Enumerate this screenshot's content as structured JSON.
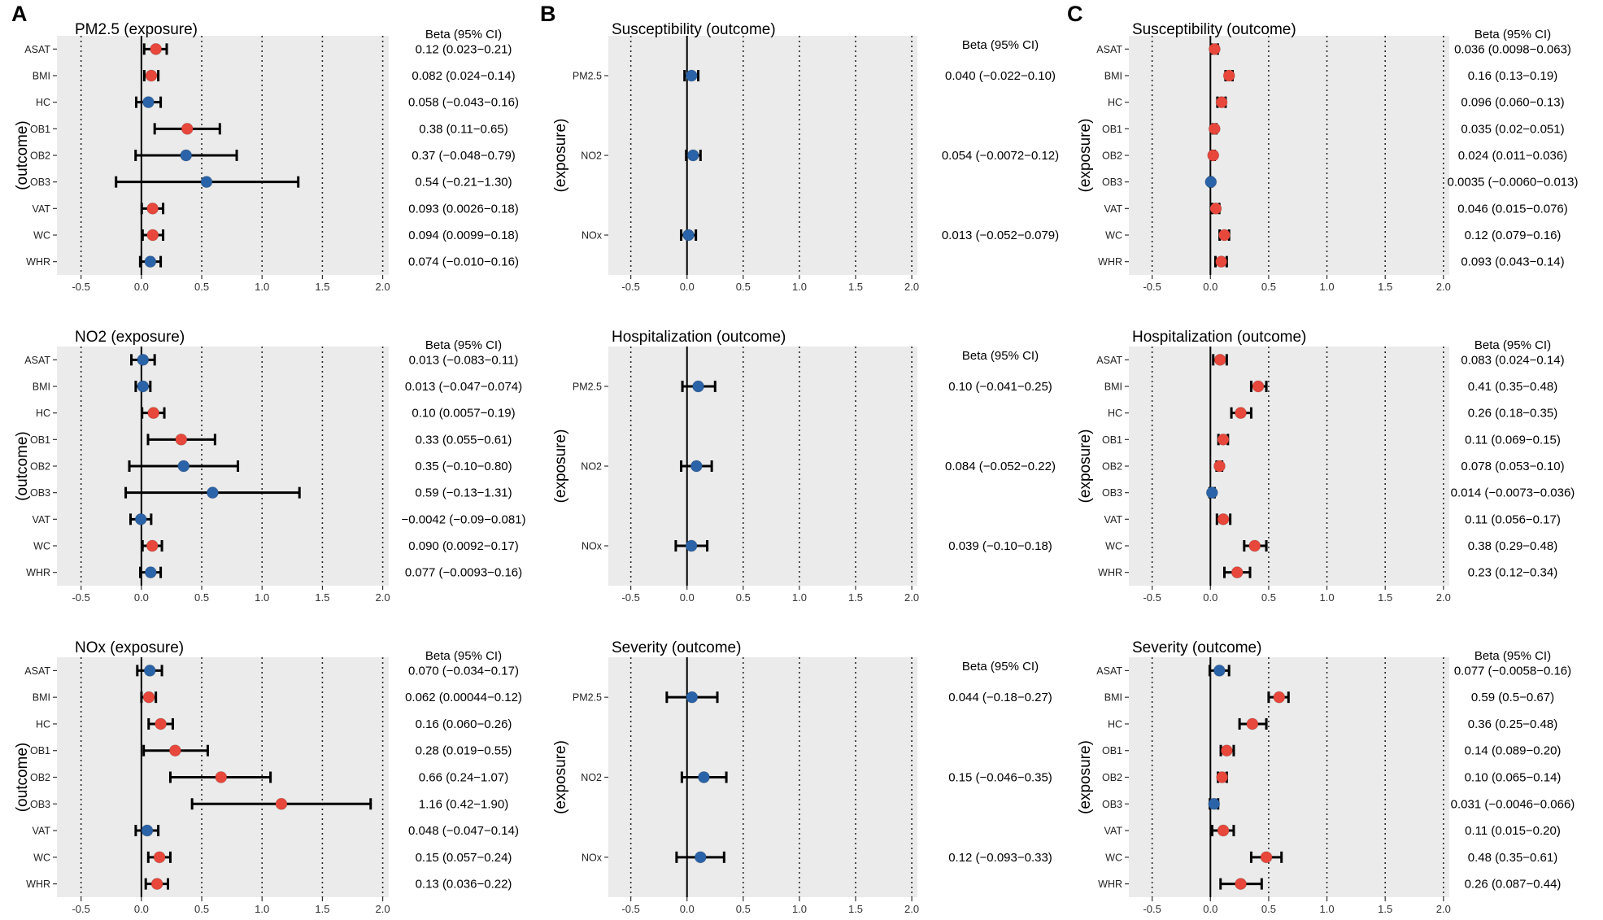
{
  "figure": {
    "panel_letters": [
      "A",
      "B",
      "C"
    ],
    "ci_header": "Beta (95% CI)",
    "x_ticks": [
      "-0.5",
      "0.0",
      "0.5",
      "1.0",
      "1.5",
      "2.0"
    ]
  },
  "colors": {
    "positive": "#e8473b",
    "null": "#2a63a8",
    "plot_bg": "#ebebeb",
    "grid": "#2a2a2a"
  },
  "chart_data": [
    {
      "panel": "A",
      "type": "forest",
      "title": "PM2.5 (exposure)",
      "ylabel": "(outcome)",
      "xlim": [
        -0.7,
        2.05
      ],
      "ref_line": 0,
      "rows": [
        {
          "label": "ASAT",
          "beta": 0.12,
          "lo": 0.023,
          "hi": 0.21,
          "sig": true,
          "text": "0.12 (0.023−0.21)"
        },
        {
          "label": "BMI",
          "beta": 0.082,
          "lo": 0.024,
          "hi": 0.14,
          "sig": true,
          "text": "0.082 (0.024−0.14)"
        },
        {
          "label": "HC",
          "beta": 0.058,
          "lo": -0.043,
          "hi": 0.16,
          "sig": false,
          "text": "0.058 (−0.043−0.16)"
        },
        {
          "label": "OB1",
          "beta": 0.38,
          "lo": 0.11,
          "hi": 0.65,
          "sig": true,
          "text": "0.38 (0.11−0.65)"
        },
        {
          "label": "OB2",
          "beta": 0.37,
          "lo": -0.048,
          "hi": 0.79,
          "sig": false,
          "text": "0.37 (−0.048−0.79)"
        },
        {
          "label": "OB3",
          "beta": 0.54,
          "lo": -0.21,
          "hi": 1.3,
          "sig": false,
          "text": "0.54 (−0.21−1.30)"
        },
        {
          "label": "VAT",
          "beta": 0.093,
          "lo": 0.0026,
          "hi": 0.18,
          "sig": true,
          "text": "0.093 (0.0026−0.18)"
        },
        {
          "label": "WC",
          "beta": 0.094,
          "lo": 0.0099,
          "hi": 0.18,
          "sig": true,
          "text": "0.094 (0.0099−0.18)"
        },
        {
          "label": "WHR",
          "beta": 0.074,
          "lo": -0.01,
          "hi": 0.16,
          "sig": false,
          "text": "0.074 (−0.010−0.16)"
        }
      ]
    },
    {
      "panel": "A",
      "type": "forest",
      "title": "NO2 (exposure)",
      "ylabel": "(outcome)",
      "xlim": [
        -0.7,
        2.05
      ],
      "ref_line": 0,
      "rows": [
        {
          "label": "ASAT",
          "beta": 0.013,
          "lo": -0.083,
          "hi": 0.11,
          "sig": false,
          "text": "0.013 (−0.083−0.11)"
        },
        {
          "label": "BMI",
          "beta": 0.013,
          "lo": -0.047,
          "hi": 0.074,
          "sig": false,
          "text": "0.013 (−0.047−0.074)"
        },
        {
          "label": "HC",
          "beta": 0.1,
          "lo": 0.0057,
          "hi": 0.19,
          "sig": true,
          "text": "0.10 (0.0057−0.19)"
        },
        {
          "label": "OB1",
          "beta": 0.33,
          "lo": 0.055,
          "hi": 0.61,
          "sig": true,
          "text": "0.33 (0.055−0.61)"
        },
        {
          "label": "OB2",
          "beta": 0.35,
          "lo": -0.1,
          "hi": 0.8,
          "sig": false,
          "text": "0.35 (−0.10−0.80)"
        },
        {
          "label": "OB3",
          "beta": 0.59,
          "lo": -0.13,
          "hi": 1.31,
          "sig": false,
          "text": "0.59 (−0.13−1.31)"
        },
        {
          "label": "VAT",
          "beta": -0.0042,
          "lo": -0.09,
          "hi": 0.081,
          "sig": false,
          "text": "−0.0042 (−0.09−0.081)"
        },
        {
          "label": "WC",
          "beta": 0.09,
          "lo": 0.0092,
          "hi": 0.17,
          "sig": true,
          "text": "0.090 (0.0092−0.17)"
        },
        {
          "label": "WHR",
          "beta": 0.077,
          "lo": -0.0093,
          "hi": 0.16,
          "sig": false,
          "text": "0.077 (−0.0093−0.16)"
        }
      ]
    },
    {
      "panel": "A",
      "type": "forest",
      "title": "NOx (exposure)",
      "ylabel": "(outcome)",
      "xlim": [
        -0.7,
        2.05
      ],
      "ref_line": 0,
      "rows": [
        {
          "label": "ASAT",
          "beta": 0.07,
          "lo": -0.034,
          "hi": 0.17,
          "sig": false,
          "text": "0.070 (−0.034−0.17)"
        },
        {
          "label": "BMI",
          "beta": 0.062,
          "lo": 0.00044,
          "hi": 0.12,
          "sig": true,
          "text": "0.062 (0.00044−0.12)"
        },
        {
          "label": "HC",
          "beta": 0.16,
          "lo": 0.06,
          "hi": 0.26,
          "sig": true,
          "text": "0.16 (0.060−0.26)"
        },
        {
          "label": "OB1",
          "beta": 0.28,
          "lo": 0.019,
          "hi": 0.55,
          "sig": true,
          "text": "0.28 (0.019−0.55)"
        },
        {
          "label": "OB2",
          "beta": 0.66,
          "lo": 0.24,
          "hi": 1.07,
          "sig": true,
          "text": "0.66 (0.24−1.07)"
        },
        {
          "label": "OB3",
          "beta": 1.16,
          "lo": 0.42,
          "hi": 1.9,
          "sig": true,
          "text": "1.16 (0.42−1.90)"
        },
        {
          "label": "VAT",
          "beta": 0.048,
          "lo": -0.047,
          "hi": 0.14,
          "sig": false,
          "text": "0.048 (−0.047−0.14)"
        },
        {
          "label": "WC",
          "beta": 0.15,
          "lo": 0.057,
          "hi": 0.24,
          "sig": true,
          "text": "0.15 (0.057−0.24)"
        },
        {
          "label": "WHR",
          "beta": 0.13,
          "lo": 0.036,
          "hi": 0.22,
          "sig": true,
          "text": "0.13 (0.036−0.22)"
        }
      ]
    },
    {
      "panel": "B",
      "type": "forest",
      "title": "Susceptibility (outcome)",
      "ylabel": "(exposure)",
      "xlim": [
        -0.7,
        2.05
      ],
      "ref_line": 0,
      "rows": [
        {
          "label": "PM2.5",
          "beta": 0.04,
          "lo": -0.022,
          "hi": 0.1,
          "sig": false,
          "text": "0.040 (−0.022−0.10)"
        },
        {
          "label": "NO2",
          "beta": 0.054,
          "lo": -0.0072,
          "hi": 0.12,
          "sig": false,
          "text": "0.054 (−0.0072−0.12)"
        },
        {
          "label": "NOx",
          "beta": 0.013,
          "lo": -0.052,
          "hi": 0.079,
          "sig": false,
          "text": "0.013 (−0.052−0.079)"
        }
      ]
    },
    {
      "panel": "B",
      "type": "forest",
      "title": "Hospitalization (outcome)",
      "ylabel": "(exposure)",
      "xlim": [
        -0.7,
        2.05
      ],
      "ref_line": 0,
      "rows": [
        {
          "label": "PM2.5",
          "beta": 0.1,
          "lo": -0.041,
          "hi": 0.25,
          "sig": false,
          "text": "0.10 (−0.041−0.25)"
        },
        {
          "label": "NO2",
          "beta": 0.084,
          "lo": -0.052,
          "hi": 0.22,
          "sig": false,
          "text": "0.084 (−0.052−0.22)"
        },
        {
          "label": "NOx",
          "beta": 0.039,
          "lo": -0.1,
          "hi": 0.18,
          "sig": false,
          "text": "0.039 (−0.10−0.18)"
        }
      ]
    },
    {
      "panel": "B",
      "type": "forest",
      "title": "Severity (outcome)",
      "ylabel": "(exposure)",
      "xlim": [
        -0.7,
        2.05
      ],
      "ref_line": 0,
      "rows": [
        {
          "label": "PM2.5",
          "beta": 0.044,
          "lo": -0.18,
          "hi": 0.27,
          "sig": false,
          "text": "0.044 (−0.18−0.27)"
        },
        {
          "label": "NO2",
          "beta": 0.15,
          "lo": -0.046,
          "hi": 0.35,
          "sig": false,
          "text": "0.15 (−0.046−0.35)"
        },
        {
          "label": "NOx",
          "beta": 0.12,
          "lo": -0.093,
          "hi": 0.33,
          "sig": false,
          "text": "0.12 (−0.093−0.33)"
        }
      ]
    },
    {
      "panel": "C",
      "type": "forest",
      "title": "Susceptibility (outcome)",
      "ylabel": "(exposure)",
      "xlim": [
        -0.7,
        2.05
      ],
      "ref_line": 0,
      "rows": [
        {
          "label": "ASAT",
          "beta": 0.036,
          "lo": 0.0098,
          "hi": 0.063,
          "sig": true,
          "text": "0.036 (0.0098−0.063)"
        },
        {
          "label": "BMI",
          "beta": 0.16,
          "lo": 0.13,
          "hi": 0.19,
          "sig": true,
          "text": "0.16 (0.13−0.19)"
        },
        {
          "label": "HC",
          "beta": 0.096,
          "lo": 0.06,
          "hi": 0.13,
          "sig": true,
          "text": "0.096 (0.060−0.13)"
        },
        {
          "label": "OB1",
          "beta": 0.035,
          "lo": 0.02,
          "hi": 0.051,
          "sig": true,
          "text": "0.035 (0.02−0.051)"
        },
        {
          "label": "OB2",
          "beta": 0.024,
          "lo": 0.011,
          "hi": 0.036,
          "sig": true,
          "text": "0.024 (0.011−0.036)"
        },
        {
          "label": "OB3",
          "beta": 0.0035,
          "lo": -0.006,
          "hi": 0.013,
          "sig": false,
          "text": "0.0035 (−0.0060−0.013)"
        },
        {
          "label": "VAT",
          "beta": 0.046,
          "lo": 0.015,
          "hi": 0.076,
          "sig": true,
          "text": "0.046 (0.015−0.076)"
        },
        {
          "label": "WC",
          "beta": 0.12,
          "lo": 0.079,
          "hi": 0.16,
          "sig": true,
          "text": "0.12 (0.079−0.16)"
        },
        {
          "label": "WHR",
          "beta": 0.093,
          "lo": 0.043,
          "hi": 0.14,
          "sig": true,
          "text": "0.093 (0.043−0.14)"
        }
      ]
    },
    {
      "panel": "C",
      "type": "forest",
      "title": "Hospitalization (outcome)",
      "ylabel": "(exposure)",
      "xlim": [
        -0.7,
        2.05
      ],
      "ref_line": 0,
      "rows": [
        {
          "label": "ASAT",
          "beta": 0.083,
          "lo": 0.024,
          "hi": 0.14,
          "sig": true,
          "text": "0.083 (0.024−0.14)"
        },
        {
          "label": "BMI",
          "beta": 0.41,
          "lo": 0.35,
          "hi": 0.48,
          "sig": true,
          "text": "0.41 (0.35−0.48)"
        },
        {
          "label": "HC",
          "beta": 0.26,
          "lo": 0.18,
          "hi": 0.35,
          "sig": true,
          "text": "0.26 (0.18−0.35)"
        },
        {
          "label": "OB1",
          "beta": 0.11,
          "lo": 0.069,
          "hi": 0.15,
          "sig": true,
          "text": "0.11 (0.069−0.15)"
        },
        {
          "label": "OB2",
          "beta": 0.078,
          "lo": 0.053,
          "hi": 0.1,
          "sig": true,
          "text": "0.078 (0.053−0.10)"
        },
        {
          "label": "OB3",
          "beta": 0.014,
          "lo": -0.0073,
          "hi": 0.036,
          "sig": false,
          "text": "0.014 (−0.0073−0.036)"
        },
        {
          "label": "VAT",
          "beta": 0.11,
          "lo": 0.056,
          "hi": 0.17,
          "sig": true,
          "text": "0.11 (0.056−0.17)"
        },
        {
          "label": "WC",
          "beta": 0.38,
          "lo": 0.29,
          "hi": 0.48,
          "sig": true,
          "text": "0.38 (0.29−0.48)"
        },
        {
          "label": "WHR",
          "beta": 0.23,
          "lo": 0.12,
          "hi": 0.34,
          "sig": true,
          "text": "0.23 (0.12−0.34)"
        }
      ]
    },
    {
      "panel": "C",
      "type": "forest",
      "title": "Severity (outcome)",
      "ylabel": "(exposure)",
      "xlim": [
        -0.7,
        2.05
      ],
      "ref_line": 0,
      "rows": [
        {
          "label": "ASAT",
          "beta": 0.077,
          "lo": -0.0058,
          "hi": 0.16,
          "sig": false,
          "text": "0.077 (−0.0058−0.16)"
        },
        {
          "label": "BMI",
          "beta": 0.59,
          "lo": 0.5,
          "hi": 0.67,
          "sig": true,
          "text": "0.59 (0.5−0.67)"
        },
        {
          "label": "HC",
          "beta": 0.36,
          "lo": 0.25,
          "hi": 0.48,
          "sig": true,
          "text": "0.36 (0.25−0.48)"
        },
        {
          "label": "OB1",
          "beta": 0.14,
          "lo": 0.089,
          "hi": 0.2,
          "sig": true,
          "text": "0.14 (0.089−0.20)"
        },
        {
          "label": "OB2",
          "beta": 0.1,
          "lo": 0.065,
          "hi": 0.14,
          "sig": true,
          "text": "0.10 (0.065−0.14)"
        },
        {
          "label": "OB3",
          "beta": 0.031,
          "lo": -0.0046,
          "hi": 0.066,
          "sig": false,
          "text": "0.031 (−0.0046−0.066)"
        },
        {
          "label": "VAT",
          "beta": 0.11,
          "lo": 0.015,
          "hi": 0.2,
          "sig": true,
          "text": "0.11 (0.015−0.20)"
        },
        {
          "label": "WC",
          "beta": 0.48,
          "lo": 0.35,
          "hi": 0.61,
          "sig": true,
          "text": "0.48 (0.35−0.61)"
        },
        {
          "label": "WHR",
          "beta": 0.26,
          "lo": 0.087,
          "hi": 0.44,
          "sig": true,
          "text": "0.26 (0.087−0.44)"
        }
      ]
    }
  ]
}
